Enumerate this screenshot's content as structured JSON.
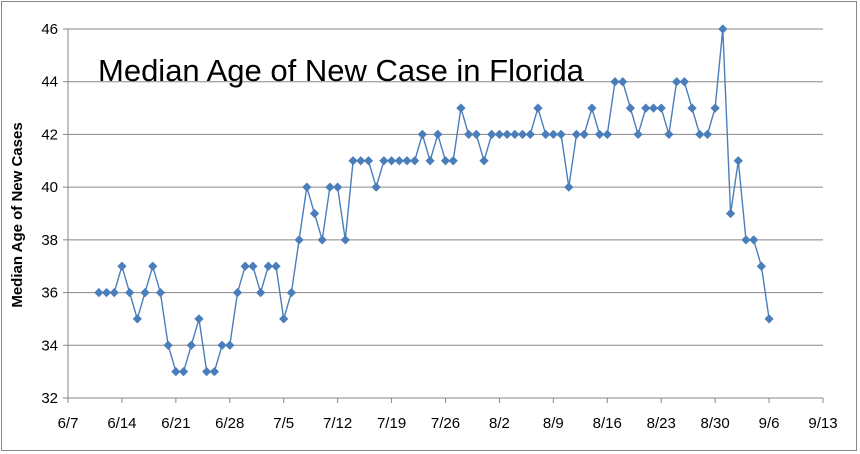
{
  "chart_data": {
    "type": "line",
    "title": "Median Age of New Case in Florida",
    "xlabel": "",
    "ylabel": "Median Age of New Cases",
    "ylim": [
      32,
      46
    ],
    "yticks": [
      32,
      34,
      36,
      38,
      40,
      42,
      44,
      46
    ],
    "xticks": [
      "6/7",
      "6/14",
      "6/21",
      "6/28",
      "7/5",
      "7/12",
      "7/19",
      "7/26",
      "8/2",
      "8/9",
      "8/16",
      "8/23",
      "8/30",
      "9/6",
      "9/13"
    ],
    "grid": true,
    "legend": "none",
    "marker": "diamond",
    "color": "#4a7ebb",
    "series": [
      {
        "x": [
          "6/11",
          "6/12",
          "6/13",
          "6/14",
          "6/15",
          "6/16",
          "6/17",
          "6/18",
          "6/19",
          "6/20",
          "6/21",
          "6/22",
          "6/23",
          "6/24",
          "6/25",
          "6/26",
          "6/27",
          "6/28",
          "6/29",
          "6/30",
          "7/1",
          "7/2",
          "7/3",
          "7/4",
          "7/5",
          "7/6",
          "7/7",
          "7/8",
          "7/9",
          "7/10",
          "7/11",
          "7/12",
          "7/13",
          "7/14",
          "7/15",
          "7/16",
          "7/17",
          "7/18",
          "7/19",
          "7/20",
          "7/21",
          "7/22",
          "7/23",
          "7/24",
          "7/25",
          "7/26",
          "7/27",
          "7/28",
          "7/29",
          "7/30",
          "7/31",
          "8/1",
          "8/2",
          "8/3",
          "8/4",
          "8/5",
          "8/6",
          "8/7",
          "8/8",
          "8/9",
          "8/10",
          "8/11",
          "8/12",
          "8/13",
          "8/14",
          "8/15",
          "8/16",
          "8/17",
          "8/18",
          "8/19",
          "8/20",
          "8/21",
          "8/22",
          "8/23",
          "8/24",
          "8/25",
          "8/26",
          "8/27",
          "8/28",
          "8/29",
          "8/30",
          "8/31",
          "9/1",
          "9/2",
          "9/3",
          "9/4",
          "9/5",
          "9/6"
        ],
        "values": [
          36,
          36,
          36,
          37,
          36,
          35,
          36,
          37,
          36,
          34,
          33,
          33,
          34,
          35,
          33,
          33,
          34,
          34,
          36,
          37,
          37,
          36,
          37,
          37,
          35,
          36,
          38,
          40,
          39,
          38,
          40,
          40,
          38,
          41,
          41,
          41,
          40,
          41,
          41,
          41,
          41,
          41,
          42,
          41,
          42,
          41,
          41,
          43,
          42,
          42,
          41,
          42,
          42,
          42,
          42,
          42,
          42,
          43,
          42,
          42,
          42,
          40,
          42,
          42,
          43,
          42,
          42,
          44,
          44,
          43,
          42,
          43,
          43,
          43,
          42,
          44,
          44,
          43,
          42,
          42,
          43,
          46,
          39,
          41,
          38,
          38,
          37,
          35
        ]
      }
    ]
  }
}
